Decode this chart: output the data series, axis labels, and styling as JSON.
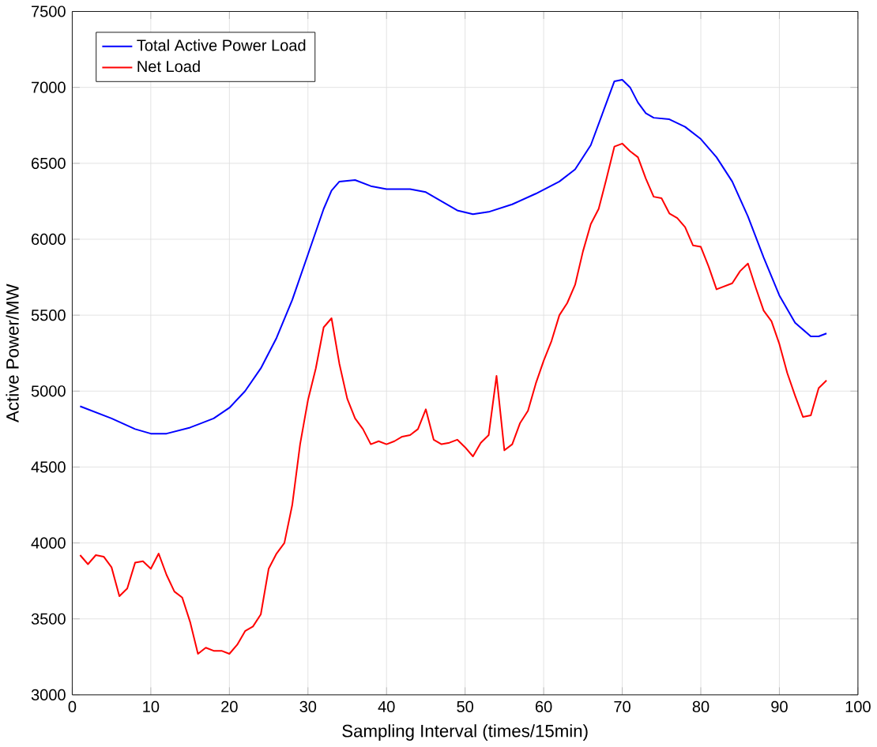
{
  "chart_data": {
    "type": "line",
    "xlabel": "Sampling Interval (times/15min)",
    "ylabel": "Active Power/MW",
    "xlim": [
      0,
      100
    ],
    "xticks": [
      0,
      10,
      20,
      30,
      40,
      50,
      60,
      70,
      80,
      90,
      100
    ],
    "ylim": [
      3000,
      7500
    ],
    "yticks": [
      3000,
      3500,
      4000,
      4500,
      5000,
      5500,
      6000,
      6500,
      7000,
      7500
    ],
    "grid": true,
    "legend": "top left",
    "series": [
      {
        "name": "Total Active Power Load",
        "color": "#0000ff",
        "x": [
          1,
          5,
          8,
          10,
          12,
          15,
          18,
          20,
          22,
          24,
          26,
          28,
          30,
          32,
          33,
          34,
          36,
          38,
          40,
          43,
          45,
          47,
          49,
          51,
          53,
          56,
          59,
          62,
          64,
          66,
          68,
          69,
          70,
          71,
          72,
          73,
          74,
          76,
          78,
          80,
          82,
          84,
          86,
          88,
          90,
          92,
          94,
          95,
          96
        ],
        "values": [
          4900,
          4820,
          4750,
          4720,
          4720,
          4760,
          4820,
          4890,
          5000,
          5150,
          5350,
          5600,
          5900,
          6200,
          6320,
          6380,
          6390,
          6350,
          6330,
          6330,
          6310,
          6250,
          6190,
          6165,
          6180,
          6230,
          6300,
          6380,
          6460,
          6620,
          6900,
          7040,
          7050,
          7000,
          6900,
          6830,
          6800,
          6790,
          6740,
          6660,
          6540,
          6380,
          6150,
          5880,
          5630,
          5450,
          5360,
          5360,
          5380
        ]
      },
      {
        "name": "Net Load",
        "color": "#ff0000",
        "x": [
          1,
          2,
          3,
          4,
          5,
          6,
          7,
          8,
          9,
          10,
          11,
          12,
          13,
          14,
          15,
          16,
          17,
          18,
          19,
          20,
          21,
          22,
          23,
          24,
          25,
          26,
          27,
          28,
          29,
          30,
          31,
          32,
          33,
          34,
          35,
          36,
          37,
          38,
          39,
          40,
          41,
          42,
          43,
          44,
          45,
          46,
          47,
          48,
          49,
          50,
          51,
          52,
          53,
          54,
          55,
          56,
          57,
          58,
          59,
          60,
          61,
          62,
          63,
          64,
          65,
          66,
          67,
          68,
          69,
          70,
          71,
          72,
          73,
          74,
          75,
          76,
          77,
          78,
          79,
          80,
          81,
          82,
          83,
          84,
          85,
          86,
          87,
          88,
          89,
          90,
          91,
          92,
          93,
          94,
          95,
          96
        ],
        "values": [
          3920,
          3860,
          3920,
          3910,
          3840,
          3650,
          3700,
          3870,
          3880,
          3830,
          3930,
          3790,
          3680,
          3640,
          3480,
          3270,
          3310,
          3290,
          3290,
          3270,
          3330,
          3420,
          3450,
          3530,
          3830,
          3930,
          4000,
          4250,
          4650,
          4940,
          5150,
          5420,
          5480,
          5180,
          4950,
          4820,
          4750,
          4650,
          4670,
          4650,
          4670,
          4700,
          4710,
          4750,
          4880,
          4680,
          4650,
          4660,
          4680,
          4630,
          4570,
          4660,
          4710,
          5100,
          4610,
          4650,
          4790,
          4870,
          5050,
          5200,
          5330,
          5500,
          5580,
          5700,
          5920,
          6100,
          6200,
          6400,
          6610,
          6630,
          6580,
          6540,
          6400,
          6280,
          6270,
          6170,
          6140,
          6080,
          5960,
          5950,
          5820,
          5670,
          5690,
          5710,
          5790,
          5840,
          5680,
          5530,
          5460,
          5310,
          5120,
          4970,
          4830,
          4840,
          5020,
          5070
        ]
      }
    ]
  }
}
